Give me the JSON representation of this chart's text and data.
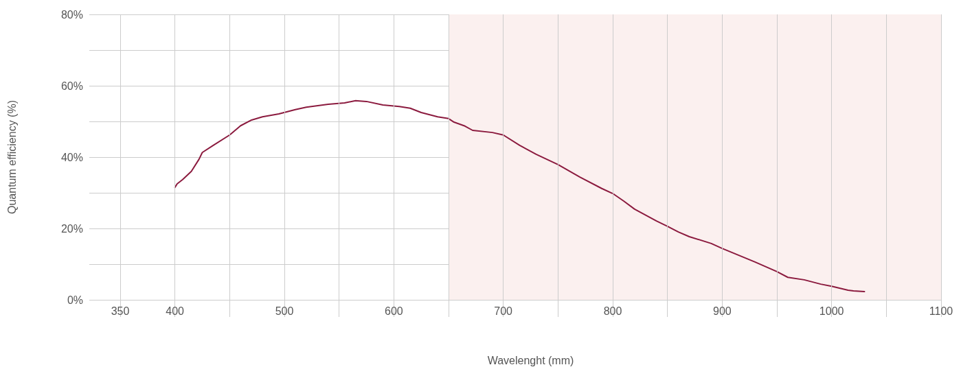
{
  "chart_data": {
    "type": "line",
    "xlabel": "Wavelenght (mm)",
    "ylabel": "Quantum efficiency (%)",
    "x": [
      400,
      402,
      407,
      415,
      422,
      425,
      435,
      450,
      460,
      470,
      480,
      495,
      510,
      520,
      540,
      555,
      565,
      575,
      590,
      605,
      615,
      625,
      640,
      650,
      655,
      665,
      672,
      690,
      700,
      715,
      730,
      750,
      770,
      790,
      800,
      810,
      820,
      840,
      850,
      860,
      870,
      890,
      900,
      930,
      950,
      960,
      975,
      990,
      1000,
      1015,
      1020,
      1030
    ],
    "series": [
      {
        "color": "#8b1a3e",
        "values": [
          31.5,
          32.5,
          33.7,
          36,
          39.4,
          41.3,
          43.3,
          46.2,
          48.8,
          50.4,
          51.3,
          52.1,
          53.3,
          54,
          54.8,
          55.2,
          55.8,
          55.6,
          54.6,
          54.2,
          53.7,
          52.5,
          51.3,
          50.8,
          49.8,
          48.7,
          47.5,
          46.9,
          46.2,
          43.3,
          40.8,
          37.9,
          34.4,
          31.2,
          29.8,
          27.7,
          25.4,
          22.1,
          20.6,
          19,
          17.7,
          15.8,
          14.4,
          10.6,
          7.9,
          6.3,
          5.6,
          4.4,
          3.8,
          2.7,
          2.5,
          2.3
        ]
      }
    ],
    "xlim": [
      350,
      1100
    ],
    "xticks": [
      350,
      400,
      {
        "value": 450,
        "label": null
      },
      500,
      {
        "value": 550,
        "label": null
      },
      600,
      {
        "value": 650,
        "label": null
      },
      700,
      {
        "value": 750,
        "label": null
      },
      800,
      {
        "value": 850,
        "label": null
      },
      900,
      {
        "value": 950,
        "label": null
      },
      1000,
      {
        "value": 1050,
        "label": null
      },
      1100
    ],
    "ylim": [
      0,
      80
    ],
    "yticks": [
      {
        "value": 0,
        "label": "0%"
      },
      {
        "value": 10,
        "label": null
      },
      {
        "value": 20,
        "label": "20%"
      },
      {
        "value": 30,
        "label": null
      },
      {
        "value": 40,
        "label": "40%"
      },
      {
        "value": 50,
        "label": null
      },
      {
        "value": 60,
        "label": "60%"
      },
      {
        "value": 70,
        "label": null
      },
      {
        "value": 80,
        "label": "80%"
      }
    ],
    "bands": [
      {
        "axis": "x",
        "from": 650,
        "to": 1100,
        "color": "#fbf0ef"
      }
    ],
    "grid": true,
    "marker": "none",
    "line_style": "solid"
  }
}
